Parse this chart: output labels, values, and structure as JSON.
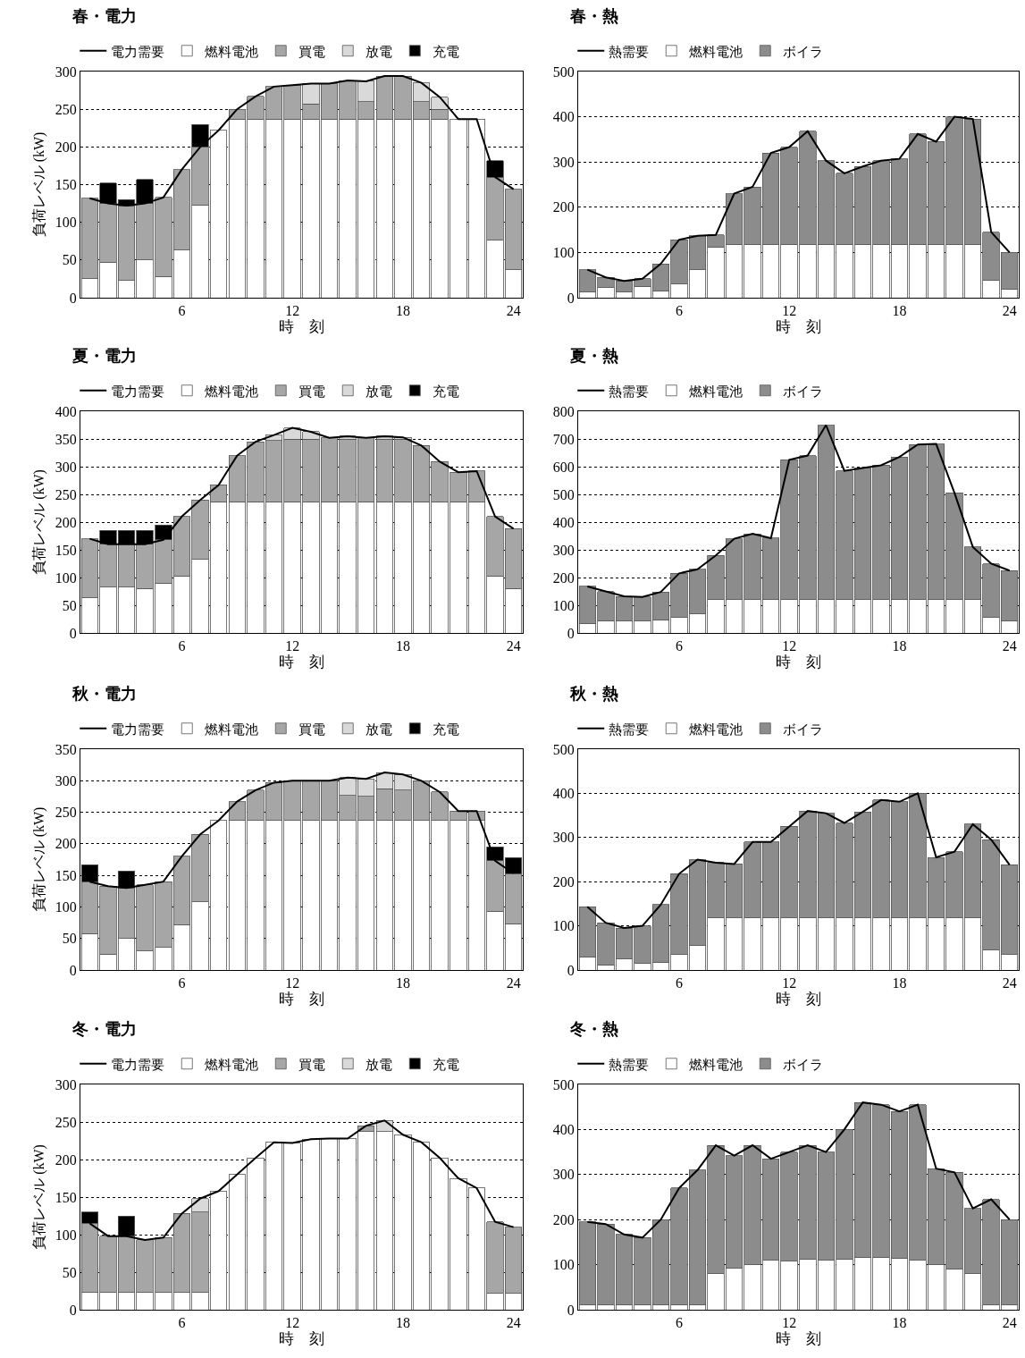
{
  "chart_data": [
    {
      "type": "bar",
      "stacked": true,
      "title": "春・電力",
      "xlabel": "時　刻",
      "ylabel": "負荷レベル (kW)",
      "x": [
        1,
        2,
        3,
        4,
        5,
        6,
        7,
        8,
        9,
        10,
        11,
        12,
        13,
        14,
        15,
        16,
        17,
        18,
        19,
        20,
        21,
        22,
        23,
        24
      ],
      "xlim": [
        0.5,
        24.5
      ],
      "xticks": [
        6,
        12,
        18,
        24
      ],
      "ylim": [
        0,
        300
      ],
      "yticks": [
        0,
        50,
        100,
        150,
        200,
        250,
        300
      ],
      "grid": "y",
      "legend": "top",
      "series": [
        {
          "name": "電力需要",
          "type": "line",
          "color": "#000000",
          "values": [
            132,
            125,
            122,
            125,
            133,
            170,
            200,
            222,
            250,
            267,
            280,
            282,
            284,
            284,
            288,
            287,
            294,
            294,
            285,
            266,
            237,
            237,
            160,
            144
          ]
        },
        {
          "name": "燃料電池",
          "color": "#ffffff",
          "values": [
            25,
            47,
            23,
            50,
            28,
            63,
            123,
            222,
            237,
            237,
            237,
            237,
            237,
            237,
            237,
            237,
            237,
            237,
            237,
            237,
            237,
            237,
            76,
            37
          ]
        },
        {
          "name": "買電",
          "color": "#a6a6a6",
          "values": [
            107,
            78,
            99,
            75,
            105,
            107,
            77,
            null,
            13,
            30,
            43,
            45,
            20,
            47,
            51,
            23,
            57,
            57,
            23,
            13,
            null,
            null,
            84,
            107
          ]
        },
        {
          "name": "放電",
          "color": "#d9d9d9",
          "values": [
            null,
            null,
            null,
            null,
            null,
            null,
            null,
            null,
            null,
            null,
            null,
            null,
            27,
            null,
            null,
            27,
            null,
            null,
            25,
            16,
            null,
            null,
            null,
            null
          ]
        },
        {
          "name": "充電",
          "color": "#000000",
          "values": [
            null,
            27,
            8,
            32,
            null,
            null,
            30,
            null,
            null,
            null,
            null,
            null,
            null,
            null,
            null,
            null,
            null,
            null,
            null,
            null,
            null,
            null,
            22,
            null
          ]
        }
      ]
    },
    {
      "type": "bar",
      "stacked": true,
      "title": "春・熱",
      "xlabel": "時　刻",
      "x": [
        1,
        2,
        3,
        4,
        5,
        6,
        7,
        8,
        9,
        10,
        11,
        12,
        13,
        14,
        15,
        16,
        17,
        18,
        19,
        20,
        21,
        22,
        23,
        24
      ],
      "xlim": [
        0.5,
        24.5
      ],
      "xticks": [
        6,
        12,
        18,
        24
      ],
      "ylim": [
        0,
        500
      ],
      "yticks": [
        0,
        100,
        200,
        300,
        400,
        500
      ],
      "grid": "y",
      "legend": "top",
      "series": [
        {
          "name": "熱需要",
          "type": "line",
          "color": "#000000",
          "values": [
            62,
            45,
            37,
            42,
            75,
            128,
            137,
            139,
            230,
            245,
            320,
            333,
            368,
            303,
            275,
            290,
            303,
            307,
            362,
            345,
            400,
            395,
            145,
            100
          ]
        },
        {
          "name": "燃料電池",
          "color": "#ffffff",
          "values": [
            12,
            22,
            12,
            25,
            15,
            30,
            62,
            112,
            118,
            118,
            118,
            118,
            118,
            118,
            118,
            118,
            118,
            118,
            118,
            118,
            118,
            118,
            38,
            18
          ]
        },
        {
          "name": "ボイラ",
          "color": "#8c8c8c",
          "values": [
            50,
            23,
            25,
            17,
            60,
            98,
            75,
            27,
            112,
            127,
            202,
            215,
            250,
            185,
            157,
            172,
            185,
            189,
            244,
            227,
            282,
            277,
            107,
            82
          ]
        }
      ]
    },
    {
      "type": "bar",
      "stacked": true,
      "title": "夏・電力",
      "xlabel": "時　刻",
      "ylabel": "負荷レベル (kW)",
      "x": [
        1,
        2,
        3,
        4,
        5,
        6,
        7,
        8,
        9,
        10,
        11,
        12,
        13,
        14,
        15,
        16,
        17,
        18,
        19,
        20,
        21,
        22,
        23,
        24
      ],
      "xlim": [
        0.5,
        24.5
      ],
      "xticks": [
        6,
        12,
        18,
        24
      ],
      "ylim": [
        0,
        400
      ],
      "yticks": [
        0,
        50,
        100,
        150,
        200,
        250,
        300,
        350,
        400
      ],
      "grid": "y",
      "legend": "top",
      "series": [
        {
          "name": "電力需要",
          "type": "line",
          "color": "#000000",
          "values": [
            170,
            160,
            160,
            160,
            168,
            210,
            240,
            267,
            320,
            345,
            357,
            370,
            363,
            352,
            355,
            352,
            355,
            353,
            338,
            309,
            290,
            292,
            210,
            188
          ]
        },
        {
          "name": "燃料電池",
          "color": "#ffffff",
          "values": [
            63,
            83,
            83,
            80,
            90,
            103,
            133,
            237,
            237,
            237,
            237,
            237,
            237,
            237,
            237,
            237,
            237,
            237,
            237,
            237,
            237,
            237,
            103,
            80
          ]
        },
        {
          "name": "買電",
          "color": "#a6a6a6",
          "values": [
            107,
            77,
            77,
            80,
            78,
            107,
            107,
            30,
            83,
            108,
            110,
            113,
            113,
            115,
            113,
            115,
            113,
            113,
            101,
            72,
            53,
            55,
            107,
            108
          ]
        },
        {
          "name": "放電",
          "color": "#d9d9d9",
          "values": [
            null,
            null,
            null,
            null,
            null,
            null,
            null,
            null,
            null,
            null,
            10,
            20,
            13,
            null,
            5,
            null,
            5,
            3,
            null,
            null,
            null,
            null,
            null,
            null
          ]
        },
        {
          "name": "充電",
          "color": "#000000",
          "values": [
            null,
            25,
            25,
            25,
            27,
            null,
            null,
            null,
            null,
            null,
            null,
            null,
            null,
            null,
            null,
            null,
            null,
            null,
            null,
            null,
            null,
            null,
            null,
            null
          ]
        }
      ]
    },
    {
      "type": "bar",
      "stacked": true,
      "title": "夏・熱",
      "xlabel": "時　刻",
      "x": [
        1,
        2,
        3,
        4,
        5,
        6,
        7,
        8,
        9,
        10,
        11,
        12,
        13,
        14,
        15,
        16,
        17,
        18,
        19,
        20,
        21,
        22,
        23,
        24
      ],
      "xlim": [
        0.5,
        24.5
      ],
      "xticks": [
        6,
        12,
        18,
        24
      ],
      "ylim": [
        0,
        800
      ],
      "yticks": [
        0,
        100,
        200,
        300,
        400,
        500,
        600,
        700,
        800
      ],
      "grid": "y",
      "legend": "top",
      "series": [
        {
          "name": "熱需要",
          "type": "line",
          "color": "#000000",
          "values": [
            168,
            150,
            132,
            130,
            148,
            215,
            230,
            280,
            340,
            358,
            342,
            625,
            640,
            750,
            585,
            595,
            605,
            635,
            680,
            682,
            505,
            310,
            250,
            225
          ]
        },
        {
          "name": "燃料電池",
          "color": "#ffffff",
          "values": [
            35,
            45,
            42,
            42,
            48,
            55,
            68,
            120,
            120,
            120,
            120,
            120,
            120,
            120,
            120,
            120,
            120,
            120,
            120,
            120,
            120,
            120,
            55,
            45
          ]
        },
        {
          "name": "ボイラ",
          "color": "#8c8c8c",
          "values": [
            133,
            105,
            90,
            88,
            100,
            160,
            162,
            160,
            220,
            238,
            222,
            505,
            520,
            630,
            465,
            475,
            485,
            515,
            560,
            562,
            385,
            190,
            195,
            180
          ]
        }
      ]
    },
    {
      "type": "bar",
      "stacked": true,
      "title": "秋・電力",
      "xlabel": "時　刻",
      "ylabel": "負荷レベル (kW)",
      "x": [
        1,
        2,
        3,
        4,
        5,
        6,
        7,
        8,
        9,
        10,
        11,
        12,
        13,
        14,
        15,
        16,
        17,
        18,
        19,
        20,
        21,
        22,
        23,
        24
      ],
      "xlim": [
        0.5,
        24.5
      ],
      "xticks": [
        6,
        12,
        18,
        24
      ],
      "ylim": [
        0,
        350
      ],
      "yticks": [
        0,
        50,
        100,
        150,
        200,
        250,
        300,
        350
      ],
      "grid": "y",
      "legend": "top",
      "series": [
        {
          "name": "電力需要",
          "type": "line",
          "color": "#000000",
          "values": [
            140,
            133,
            130,
            135,
            140,
            180,
            215,
            237,
            267,
            285,
            297,
            300,
            300,
            300,
            305,
            303,
            313,
            310,
            300,
            282,
            252,
            252,
            173,
            153
          ]
        },
        {
          "name": "燃料電池",
          "color": "#ffffff",
          "values": [
            58,
            25,
            50,
            30,
            36,
            72,
            108,
            237,
            237,
            237,
            237,
            237,
            237,
            237,
            237,
            237,
            237,
            237,
            237,
            237,
            237,
            237,
            93,
            73
          ]
        },
        {
          "name": "買電",
          "color": "#a6a6a6",
          "values": [
            82,
            108,
            80,
            105,
            104,
            108,
            107,
            null,
            30,
            48,
            60,
            63,
            63,
            63,
            40,
            38,
            50,
            48,
            63,
            45,
            15,
            15,
            80,
            80
          ]
        },
        {
          "name": "放電",
          "color": "#d9d9d9",
          "values": [
            null,
            null,
            null,
            null,
            null,
            null,
            null,
            null,
            null,
            null,
            null,
            null,
            null,
            null,
            28,
            28,
            26,
            25,
            null,
            null,
            null,
            null,
            null,
            null
          ]
        },
        {
          "name": "充電",
          "color": "#000000",
          "values": [
            27,
            null,
            27,
            null,
            null,
            null,
            null,
            null,
            null,
            null,
            null,
            null,
            null,
            null,
            null,
            null,
            null,
            null,
            null,
            null,
            null,
            null,
            22,
            25
          ]
        }
      ]
    },
    {
      "type": "bar",
      "stacked": true,
      "title": "秋・熱",
      "xlabel": "時　刻",
      "x": [
        1,
        2,
        3,
        4,
        5,
        6,
        7,
        8,
        9,
        10,
        11,
        12,
        13,
        14,
        15,
        16,
        17,
        18,
        19,
        20,
        21,
        22,
        23,
        24
      ],
      "xlim": [
        0.5,
        24.5
      ],
      "xticks": [
        6,
        12,
        18,
        24
      ],
      "ylim": [
        0,
        500
      ],
      "yticks": [
        0,
        100,
        200,
        300,
        400,
        500
      ],
      "grid": "y",
      "legend": "top",
      "series": [
        {
          "name": "熱需要",
          "type": "line",
          "color": "#000000",
          "values": [
            143,
            107,
            95,
            100,
            148,
            218,
            250,
            243,
            240,
            290,
            290,
            325,
            360,
            355,
            333,
            358,
            385,
            381,
            400,
            255,
            268,
            330,
            295,
            238
          ]
        },
        {
          "name": "燃料電池",
          "color": "#ffffff",
          "values": [
            30,
            12,
            25,
            15,
            18,
            35,
            55,
            118,
            118,
            118,
            118,
            118,
            118,
            118,
            118,
            118,
            118,
            118,
            118,
            118,
            118,
            118,
            45,
            35
          ]
        },
        {
          "name": "ボイラ",
          "color": "#8c8c8c",
          "values": [
            113,
            95,
            70,
            85,
            130,
            183,
            195,
            125,
            122,
            172,
            172,
            207,
            242,
            237,
            215,
            240,
            267,
            263,
            282,
            137,
            150,
            212,
            250,
            203
          ]
        }
      ]
    },
    {
      "type": "bar",
      "stacked": true,
      "title": "冬・電力",
      "xlabel": "時　刻",
      "ylabel": "負荷レベル (kW)",
      "x": [
        1,
        2,
        3,
        4,
        5,
        6,
        7,
        8,
        9,
        10,
        11,
        12,
        13,
        14,
        15,
        16,
        17,
        18,
        19,
        20,
        21,
        22,
        23,
        24
      ],
      "xlim": [
        0.5,
        24.5
      ],
      "xticks": [
        6,
        12,
        18,
        24
      ],
      "ylim": [
        0,
        300
      ],
      "yticks": [
        0,
        50,
        100,
        150,
        200,
        250,
        300
      ],
      "grid": "y",
      "legend": "top",
      "series": [
        {
          "name": "電力需要",
          "type": "line",
          "color": "#000000",
          "values": [
            115,
            98,
            98,
            93,
            96,
            128,
            148,
            158,
            180,
            202,
            223,
            222,
            227,
            228,
            228,
            245,
            252,
            233,
            223,
            202,
            175,
            162,
            117,
            110
          ]
        },
        {
          "name": "燃料電池",
          "color": "#ffffff",
          "values": [
            23,
            23,
            23,
            23,
            23,
            23,
            23,
            158,
            180,
            202,
            223,
            222,
            227,
            228,
            228,
            237,
            237,
            233,
            223,
            202,
            175,
            162,
            22,
            22
          ]
        },
        {
          "name": "買電",
          "color": "#a6a6a6",
          "values": [
            92,
            75,
            75,
            70,
            73,
            105,
            107,
            null,
            null,
            null,
            null,
            null,
            null,
            null,
            null,
            8,
            null,
            null,
            null,
            null,
            null,
            null,
            95,
            88
          ]
        },
        {
          "name": "放電",
          "color": "#d9d9d9",
          "values": [
            null,
            null,
            null,
            null,
            null,
            null,
            18,
            null,
            null,
            null,
            null,
            null,
            null,
            null,
            null,
            null,
            15,
            null,
            null,
            null,
            null,
            null,
            null,
            null
          ]
        },
        {
          "name": "充電",
          "color": "#000000",
          "values": [
            15,
            null,
            27,
            null,
            null,
            null,
            null,
            null,
            null,
            null,
            null,
            null,
            null,
            null,
            null,
            null,
            null,
            null,
            null,
            null,
            null,
            null,
            null,
            null
          ]
        }
      ]
    },
    {
      "type": "bar",
      "stacked": true,
      "title": "冬・熱",
      "xlabel": "時　刻",
      "x": [
        1,
        2,
        3,
        4,
        5,
        6,
        7,
        8,
        9,
        10,
        11,
        12,
        13,
        14,
        15,
        16,
        17,
        18,
        19,
        20,
        21,
        22,
        23,
        24
      ],
      "xlim": [
        0.5,
        24.5
      ],
      "xticks": [
        6,
        12,
        18,
        24
      ],
      "ylim": [
        0,
        500
      ],
      "yticks": [
        0,
        100,
        200,
        300,
        400,
        500
      ],
      "grid": "y",
      "legend": "top",
      "series": [
        {
          "name": "熱需要",
          "type": "line",
          "color": "#000000",
          "values": [
            195,
            190,
            167,
            160,
            200,
            270,
            310,
            365,
            342,
            365,
            335,
            350,
            365,
            350,
            400,
            460,
            455,
            440,
            455,
            313,
            305,
            225,
            245,
            200
          ]
        },
        {
          "name": "燃料電池",
          "color": "#ffffff",
          "values": [
            10,
            10,
            10,
            10,
            10,
            10,
            10,
            80,
            92,
            100,
            110,
            108,
            113,
            110,
            113,
            117,
            117,
            115,
            110,
            100,
            90,
            80,
            10,
            10
          ]
        },
        {
          "name": "ボイラ",
          "color": "#8c8c8c",
          "values": [
            185,
            180,
            157,
            150,
            190,
            260,
            300,
            285,
            250,
            265,
            225,
            242,
            252,
            240,
            287,
            343,
            338,
            325,
            345,
            213,
            215,
            145,
            235,
            190
          ]
        }
      ]
    }
  ]
}
